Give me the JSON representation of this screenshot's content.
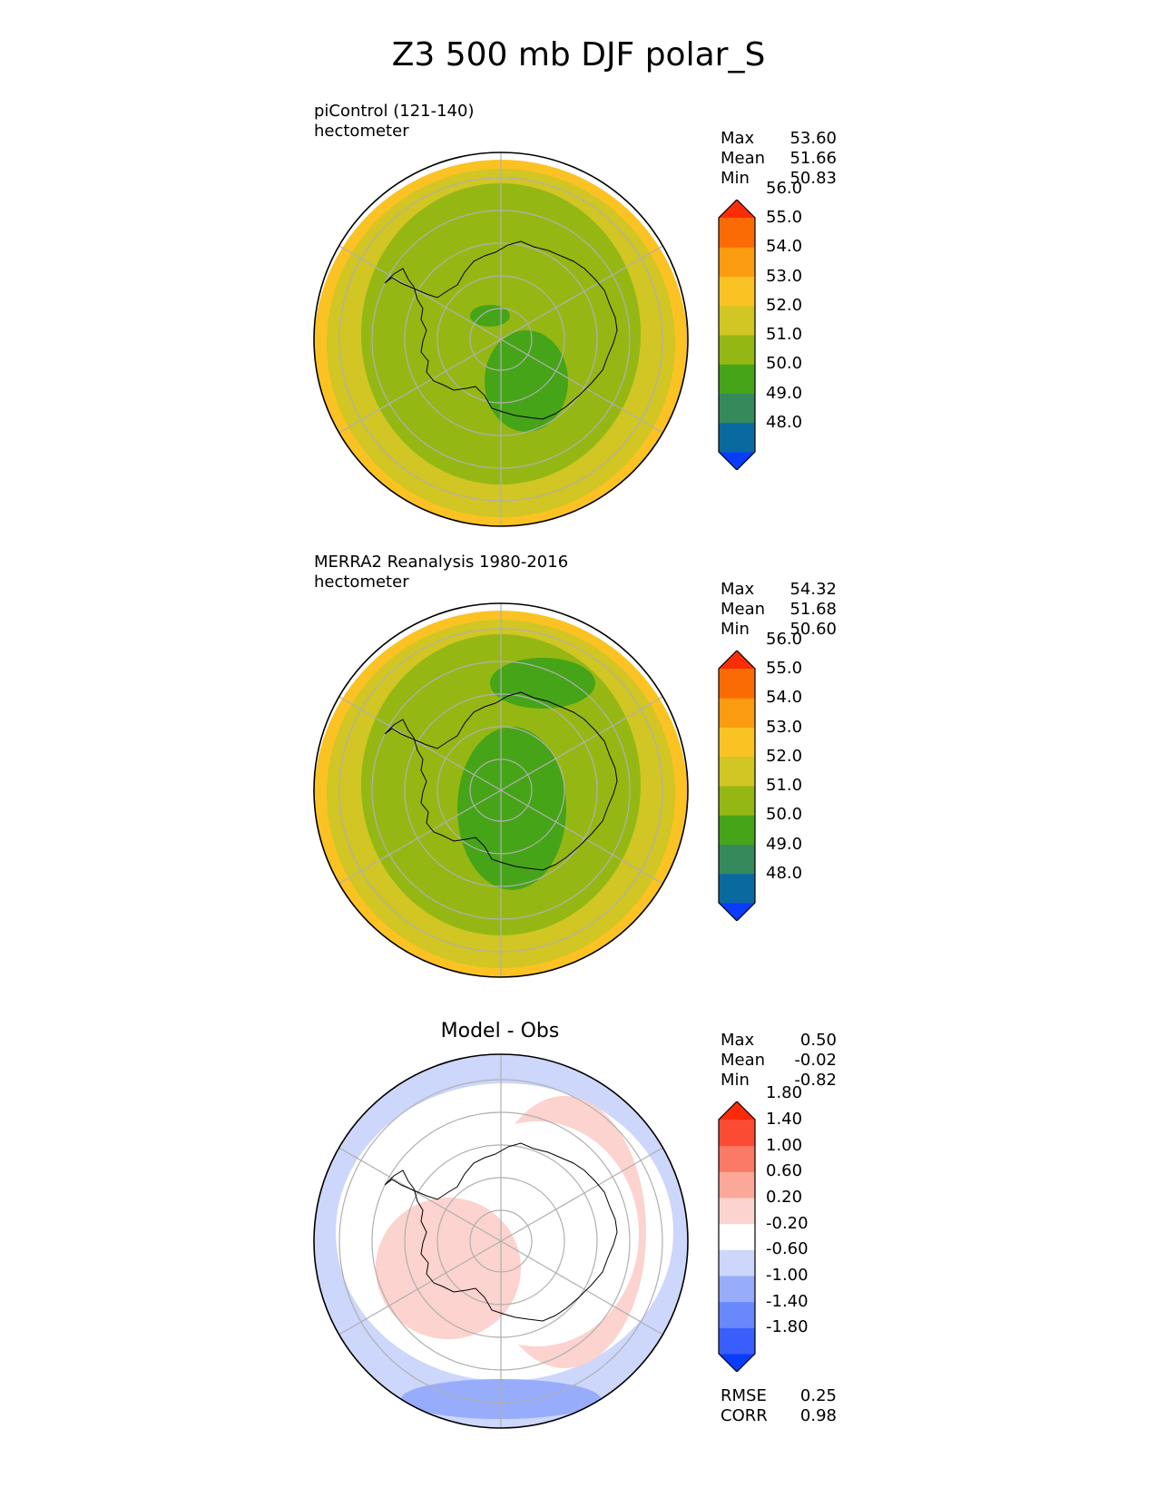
{
  "title": "Z3 500 mb DJF polar_S",
  "colors": {
    "coast": "#000000",
    "grid": "#b0b0b0",
    "frame": "#000000"
  },
  "chart_data": [
    {
      "type": "heatmap",
      "projection": "south-polar-stereographic",
      "subtitle_1": "piControl (121-140)",
      "subtitle_2": "hectometer",
      "stats": [
        {
          "label": "Max",
          "value": "53.60"
        },
        {
          "label": "Mean",
          "value": "51.66"
        },
        {
          "label": "Min",
          "value": "50.83"
        }
      ],
      "colorbar": {
        "extend": "both",
        "colors": [
          "#0a3cfb",
          "#0a6aa0",
          "#358a5c",
          "#46a418",
          "#95b714",
          "#d1c623",
          "#fbc223",
          "#fb9b10",
          "#fb6b05",
          "#fb2d06"
        ],
        "ticks": [
          "48.0",
          "49.0",
          "50.0",
          "51.0",
          "52.0",
          "53.0",
          "54.0",
          "55.0",
          "56.0"
        ]
      },
      "field": {
        "background": "#95b714",
        "rings": [
          "#fbc223",
          "#d1c623"
        ],
        "blobs": [
          {
            "color": "#46a418",
            "sector": "center-left"
          },
          {
            "color": "#46a418",
            "sector": "lower-center"
          }
        ]
      }
    },
    {
      "type": "heatmap",
      "projection": "south-polar-stereographic",
      "subtitle_1": "MERRA2 Reanalysis 1980-2016",
      "subtitle_2": "hectometer",
      "stats": [
        {
          "label": "Max",
          "value": "54.32"
        },
        {
          "label": "Mean",
          "value": "51.68"
        },
        {
          "label": "Min",
          "value": "50.60"
        }
      ],
      "colorbar": {
        "extend": "both",
        "colors": [
          "#0a3cfb",
          "#0a6aa0",
          "#358a5c",
          "#46a418",
          "#95b714",
          "#d1c623",
          "#fbc223",
          "#fb9b10",
          "#fb6b05",
          "#fb2d06"
        ],
        "ticks": [
          "48.0",
          "49.0",
          "50.0",
          "51.0",
          "52.0",
          "53.0",
          "54.0",
          "55.0",
          "56.0"
        ]
      },
      "field": {
        "background": "#95b714",
        "rings": [
          "#fbc223",
          "#d1c623"
        ],
        "blobs": [
          {
            "color": "#46a418",
            "sector": "top"
          },
          {
            "color": "#46a418",
            "sector": "center"
          }
        ]
      }
    },
    {
      "type": "heatmap",
      "projection": "south-polar-stereographic",
      "panel_title": "Model - Obs",
      "stats": [
        {
          "label": "Max",
          "value": "0.50"
        },
        {
          "label": "Mean",
          "value": "-0.02"
        },
        {
          "label": "Min",
          "value": "-0.82"
        }
      ],
      "metrics": [
        {
          "label": "RMSE",
          "value": "0.25"
        },
        {
          "label": "CORR",
          "value": "0.98"
        }
      ],
      "colorbar": {
        "extend": "both",
        "colors": [
          "#0a3cfb",
          "#3a5efb",
          "#6888fb",
          "#97acfb",
          "#cdd6fb",
          "#ffffff",
          "#fcd3ce",
          "#fba898",
          "#fb7a66",
          "#fb4c33",
          "#fb2a0a"
        ],
        "ticks": [
          "-1.80",
          "-1.40",
          "-1.00",
          "-0.60",
          "-0.20",
          "0.20",
          "0.60",
          "1.00",
          "1.40",
          "1.80"
        ]
      },
      "field": {
        "background": "#ffffff",
        "rings": [
          "#cdd6fb"
        ],
        "blobs": [
          {
            "color": "#fcd3ce",
            "sector": "right-arc"
          },
          {
            "color": "#fcd3ce",
            "sector": "left-center"
          },
          {
            "color": "#97acfb",
            "sector": "bottom"
          }
        ]
      }
    }
  ]
}
